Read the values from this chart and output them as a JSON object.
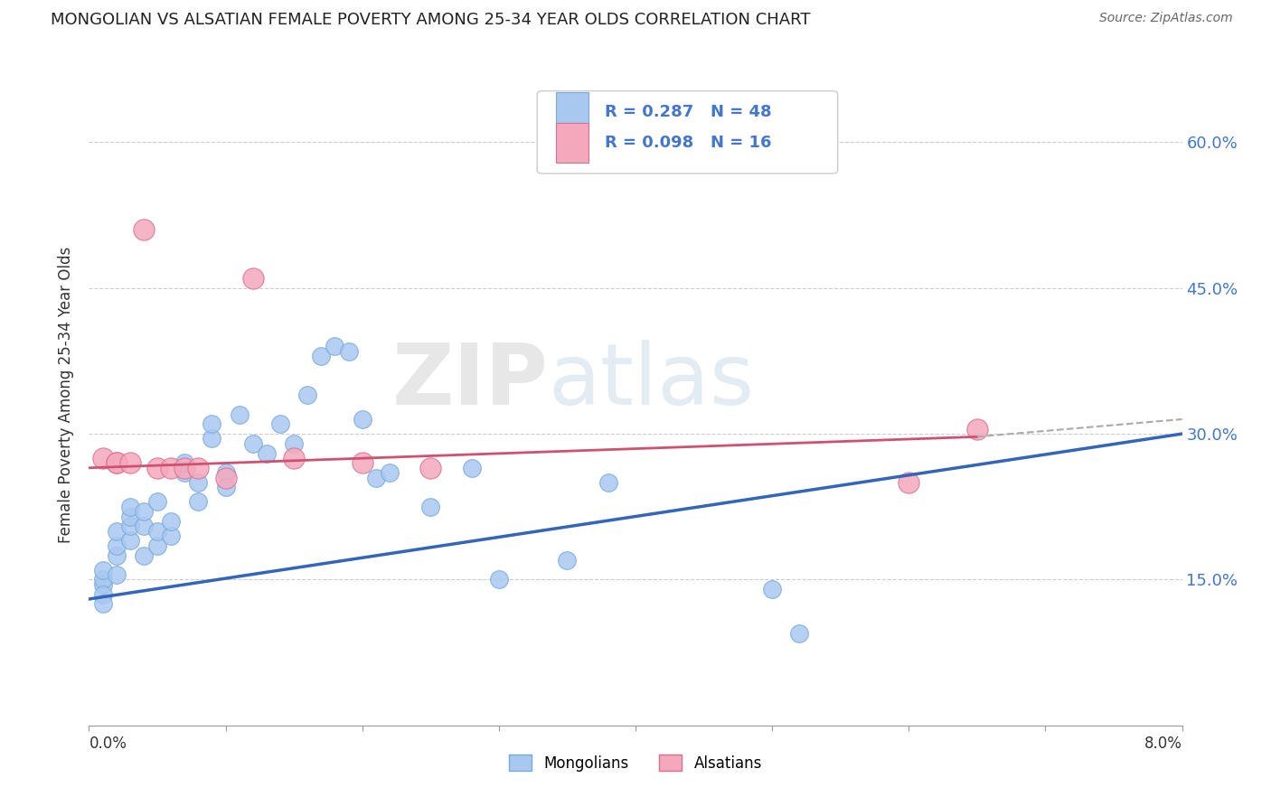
{
  "title": "MONGOLIAN VS ALSATIAN FEMALE POVERTY AMONG 25-34 YEAR OLDS CORRELATION CHART",
  "source": "Source: ZipAtlas.com",
  "ylabel": "Female Poverty Among 25-34 Year Olds",
  "ytick_labels": [
    "15.0%",
    "30.0%",
    "45.0%",
    "60.0%"
  ],
  "xlim": [
    0.0,
    0.08
  ],
  "ylim": [
    0.0,
    0.68
  ],
  "mongolian_color": "#A8C8F0",
  "alsatian_color": "#F5A8BC",
  "mongolian_edge": "#7aaad8",
  "alsatian_edge": "#d87090",
  "trend_mongolian_color": "#3366bb",
  "trend_alsatian_color": "#d05070",
  "trend_dashed_color": "#aaaaaa",
  "legend_R_mongolian": "R = 0.287",
  "legend_N_mongolian": "N = 48",
  "legend_R_alsatian": "R = 0.098",
  "legend_N_alsatian": "N = 16",
  "watermark_zip": "ZIP",
  "watermark_atlas": "atlas",
  "mongolian_x": [
    0.001,
    0.001,
    0.001,
    0.001,
    0.001,
    0.002,
    0.002,
    0.002,
    0.002,
    0.003,
    0.003,
    0.003,
    0.003,
    0.004,
    0.004,
    0.004,
    0.005,
    0.005,
    0.005,
    0.006,
    0.006,
    0.007,
    0.007,
    0.008,
    0.008,
    0.009,
    0.009,
    0.01,
    0.01,
    0.011,
    0.012,
    0.013,
    0.014,
    0.015,
    0.016,
    0.017,
    0.018,
    0.019,
    0.02,
    0.021,
    0.022,
    0.025,
    0.028,
    0.03,
    0.035,
    0.038,
    0.05,
    0.052
  ],
  "mongolian_y": [
    0.145,
    0.15,
    0.16,
    0.135,
    0.125,
    0.155,
    0.175,
    0.185,
    0.2,
    0.19,
    0.205,
    0.215,
    0.225,
    0.175,
    0.205,
    0.22,
    0.185,
    0.2,
    0.23,
    0.195,
    0.21,
    0.26,
    0.27,
    0.25,
    0.23,
    0.295,
    0.31,
    0.26,
    0.245,
    0.32,
    0.29,
    0.28,
    0.31,
    0.29,
    0.34,
    0.38,
    0.39,
    0.385,
    0.315,
    0.255,
    0.26,
    0.225,
    0.265,
    0.15,
    0.17,
    0.25,
    0.14,
    0.095
  ],
  "alsatian_x": [
    0.001,
    0.002,
    0.002,
    0.003,
    0.004,
    0.005,
    0.006,
    0.007,
    0.008,
    0.01,
    0.012,
    0.015,
    0.02,
    0.025,
    0.06,
    0.065
  ],
  "alsatian_y": [
    0.275,
    0.27,
    0.27,
    0.27,
    0.51,
    0.265,
    0.265,
    0.265,
    0.265,
    0.255,
    0.46,
    0.275,
    0.27,
    0.265,
    0.25,
    0.305
  ]
}
